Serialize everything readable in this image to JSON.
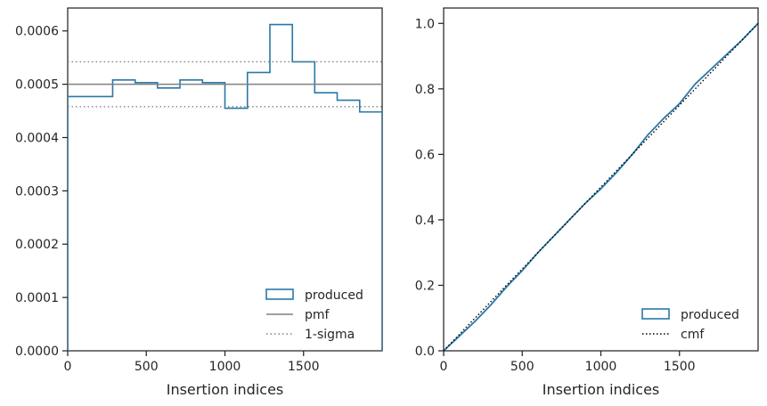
{
  "colors": {
    "produced": "#2878a8",
    "pmf": "#808080",
    "sigma": "#808080",
    "cmf": "#000000",
    "axes": "#262626"
  },
  "chart_data": [
    {
      "type": "histogram-step",
      "xlabel": "Insertion indices",
      "ylabel": "",
      "xlim": [
        0,
        2000
      ],
      "ylim": [
        0,
        0.000643
      ],
      "xticks": [
        0,
        500,
        1000,
        1500
      ],
      "xtick_labels": [
        "0",
        "500",
        "1000",
        "1500"
      ],
      "yticks": [
        0,
        0.0001,
        0.0002,
        0.0003,
        0.0004,
        0.0005,
        0.0006
      ],
      "ytick_labels": [
        "0.0000",
        "0.0001",
        "0.0002",
        "0.0003",
        "0.0004",
        "0.0005",
        "0.0006"
      ],
      "grid": false,
      "legend_position": "bottom-right",
      "series": [
        {
          "name": "produced",
          "style": "step",
          "bin_edges": [
            0,
            286,
            429,
            571,
            714,
            857,
            1000,
            1143,
            1286,
            1429,
            1571,
            1714,
            1857,
            2000
          ],
          "values": [
            0.000477,
            0.000508,
            0.000503,
            0.000493,
            0.000508,
            0.000503,
            0.000455,
            0.000522,
            0.000612,
            0.000542,
            0.000484,
            0.00047,
            0.000448
          ]
        },
        {
          "name": "pmf",
          "style": "hline-solid",
          "y": 0.0005
        },
        {
          "name": "1-sigma",
          "style": "hline-dotted",
          "y": [
            0.000542,
            0.000458
          ]
        }
      ]
    },
    {
      "type": "line",
      "xlabel": "Insertion indices",
      "ylabel": "",
      "xlim": [
        0,
        2000
      ],
      "ylim": [
        0,
        1.047
      ],
      "xticks": [
        0,
        500,
        1000,
        1500
      ],
      "xtick_labels": [
        "0",
        "500",
        "1000",
        "1500"
      ],
      "yticks": [
        0,
        0.2,
        0.4,
        0.6,
        0.8,
        1.0
      ],
      "ytick_labels": [
        "0.0",
        "0.2",
        "0.4",
        "0.6",
        "0.8",
        "1.0"
      ],
      "grid": false,
      "legend_position": "bottom-right",
      "series": [
        {
          "name": "produced",
          "style": "solid",
          "x": [
            0,
            100,
            200,
            300,
            400,
            500,
            600,
            700,
            800,
            900,
            1000,
            1100,
            1200,
            1300,
            1400,
            1500,
            1600,
            1700,
            1800,
            1900,
            2000
          ],
          "y": [
            0,
            0.045,
            0.09,
            0.14,
            0.195,
            0.245,
            0.3,
            0.35,
            0.4,
            0.45,
            0.495,
            0.545,
            0.6,
            0.66,
            0.71,
            0.755,
            0.815,
            0.86,
            0.905,
            0.95,
            1.0
          ]
        },
        {
          "name": "cmf",
          "style": "dotted",
          "x": [
            0,
            2000
          ],
          "y": [
            0,
            1.0
          ]
        }
      ]
    }
  ]
}
